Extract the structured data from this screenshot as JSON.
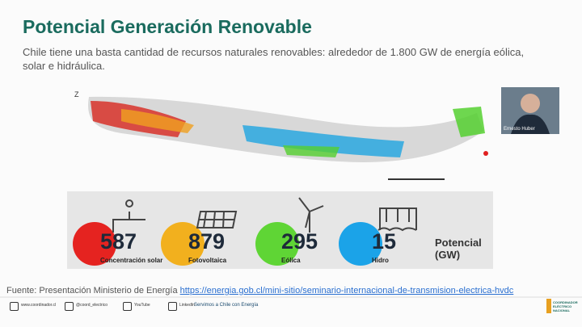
{
  "header": {
    "title": "Potencial Generación Renovable",
    "subtitle": "Chile tiene una basta cantidad de recursos naturales renovables: alrededor de 1.800 GW de energía eólica, solar e hidráulica."
  },
  "stats": {
    "items": [
      {
        "value": "587",
        "label": "Concentración solar"
      },
      {
        "value": "879",
        "label": "Fotovoltaica"
      },
      {
        "value": "295",
        "label": "Eólica"
      },
      {
        "value": "15",
        "label": "Hidro"
      }
    ],
    "caption": "Potencial (GW)"
  },
  "source": {
    "text": "Fuente: Presentación Ministerio de Energía",
    "link": "https://energia.gob.cl/mini-sitio/seminario-internacional-de-transmision-electrica-hvdc"
  },
  "speaker": "Ernesto Huber",
  "footer": {
    "items": [
      "www.coordinador.cl",
      "@coord_electrico",
      "YouTube",
      "LinkedIn"
    ],
    "tagline": "Servimos a Chile con Energía",
    "logo": "COORDINADOR ELÉCTRICO NACIONAL"
  }
}
